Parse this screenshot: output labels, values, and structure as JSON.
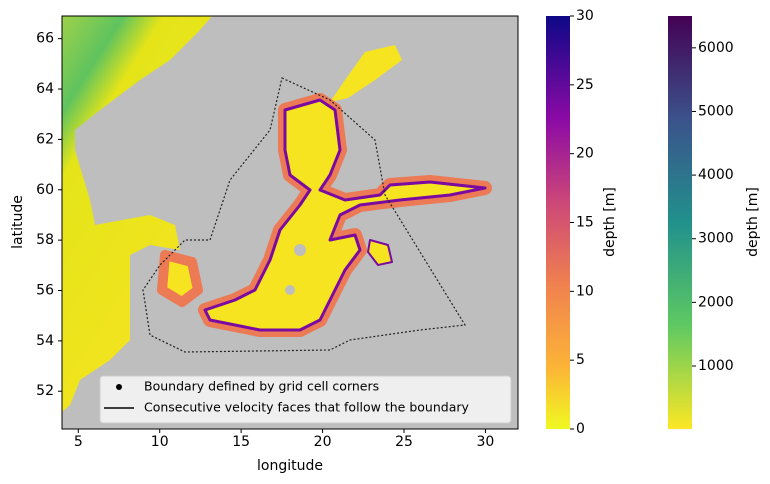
{
  "chart_data": {
    "type": "map",
    "xlabel": "longitude",
    "ylabel": "latitude",
    "xlim": [
      4,
      32
    ],
    "ylim": [
      50.5,
      66.9
    ],
    "xticks": [
      5,
      10,
      15,
      20,
      25,
      30
    ],
    "yticks": [
      52,
      54,
      56,
      58,
      60,
      62,
      64,
      66
    ],
    "legend": [
      "Boundary defined by grid cell corners",
      "Consecutive velocity faces that follow the boundary"
    ],
    "colorbars": [
      {
        "label": "depth [m]",
        "lim": [
          0,
          30
        ],
        "ticks": [
          0,
          5,
          10,
          15,
          20,
          25,
          30
        ]
      },
      {
        "label": "depth [m]",
        "lim": [
          10,
          6500
        ],
        "ticks": [
          1000,
          2000,
          3000,
          4000,
          5000,
          6000
        ]
      }
    ]
  }
}
